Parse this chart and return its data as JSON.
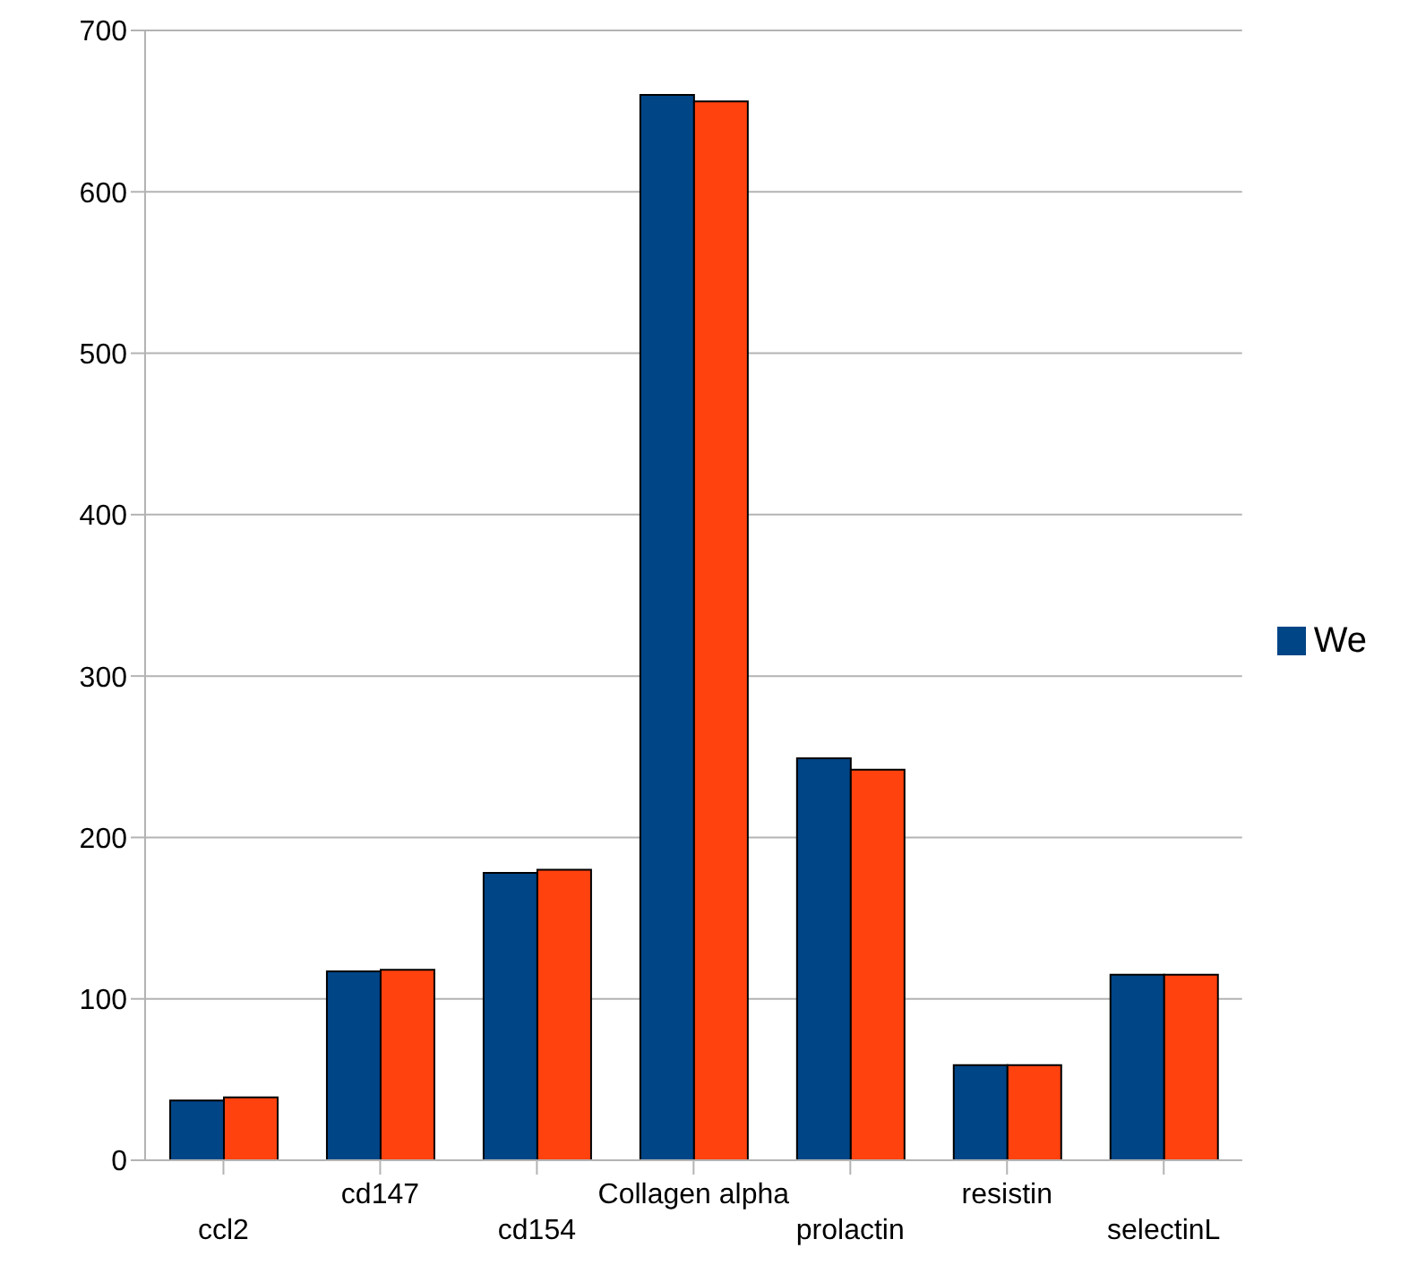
{
  "chart_data": {
    "type": "bar",
    "categories": [
      "ccl2",
      "cd147",
      "cd154",
      "Collagen alpha",
      "prolactin",
      "resistin",
      "selectinL"
    ],
    "series": [
      {
        "name": "We",
        "color": "#004586",
        "values": [
          37,
          117,
          178,
          660,
          249,
          59,
          115
        ]
      },
      {
        "color": "#ff420e",
        "values": [
          39,
          118,
          180,
          656,
          242,
          59,
          115
        ]
      }
    ],
    "ylim": [
      0,
      700
    ],
    "yticks": [
      0,
      100,
      200,
      300,
      400,
      500,
      600,
      700
    ],
    "grid": "y",
    "legend": "right"
  }
}
